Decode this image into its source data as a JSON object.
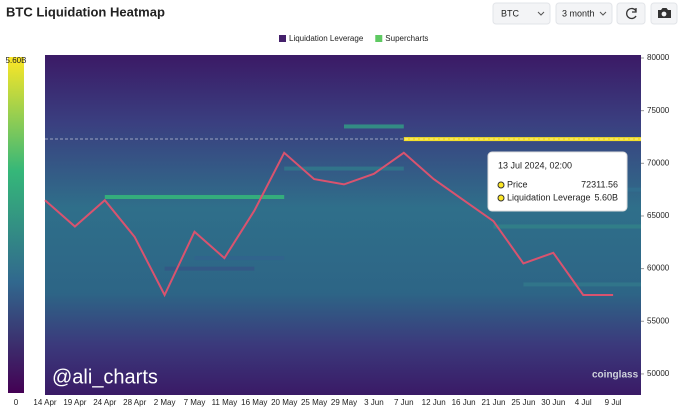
{
  "header": {
    "title": "BTC Liquidation Heatmap"
  },
  "controls": {
    "symbol": "BTC",
    "range": "3 month"
  },
  "chart_data": {
    "type": "heatmap",
    "legend": [
      {
        "name": "Liquidation Leverage",
        "color": "#44206b"
      },
      {
        "name": "Supercharts",
        "color": "#5ec962"
      }
    ],
    "categories": [
      "14 Apr",
      "19 Apr",
      "24 Apr",
      "28 Apr",
      "2 May",
      "7 May",
      "11 May",
      "16 May",
      "20 May",
      "25 May",
      "29 May",
      "3 Jun",
      "7 Jun",
      "12 Jun",
      "16 Jun",
      "21 Jun",
      "25 Jun",
      "30 Jun",
      "4 Jul",
      "9 Jul"
    ],
    "ylim": [
      48000,
      80000
    ],
    "yticks": [
      50000,
      55000,
      60000,
      65000,
      70000,
      75000,
      80000
    ],
    "clim": [
      0,
      5600000000
    ],
    "cticks": [
      0,
      {
        "value": 5600000000,
        "label": "5.60B"
      }
    ],
    "price": {
      "name": "Price",
      "color": "#d9536f",
      "values": [
        66500,
        64000,
        66500,
        63000,
        57500,
        63500,
        61000,
        65500,
        71000,
        68500,
        68000,
        69000,
        71000,
        68500,
        66500,
        64500,
        60500,
        61500,
        57500,
        57500
      ]
    },
    "bands": [
      {
        "price": 66800,
        "from": "24 Apr",
        "to": "20 May",
        "value": 3600000000
      },
      {
        "price": 60000,
        "from": "2 May",
        "to": "16 May",
        "value": 1600000000
      },
      {
        "price": 61000,
        "from": "7 May",
        "to": "20 May",
        "value": 1800000000
      },
      {
        "price": 69500,
        "from": "20 May",
        "to": "7 Jun",
        "value": 2200000000
      },
      {
        "price": 73500,
        "from": "29 May",
        "to": "7 Jun",
        "value": 2800000000
      },
      {
        "price": 72300,
        "from": "7 Jun",
        "to": "9 Jul",
        "value": 5600000000
      },
      {
        "price": 64000,
        "from": "21 Jun",
        "to": "9 Jul",
        "value": 2400000000
      },
      {
        "price": 67500,
        "from": "25 Jun",
        "to": "9 Jul",
        "value": 2000000000
      },
      {
        "price": 58500,
        "from": "25 Jun",
        "to": "9 Jul",
        "value": 2200000000
      }
    ],
    "tooltip": {
      "title": "13 Jul 2024, 02:00",
      "items": [
        {
          "name": "Price",
          "value": 72311.56
        },
        {
          "name": "Liquidation Leverage",
          "value": 5600000000,
          "value_label": "5.60B"
        }
      ]
    },
    "watermark": "@ali_charts",
    "brand": "coinglass"
  }
}
